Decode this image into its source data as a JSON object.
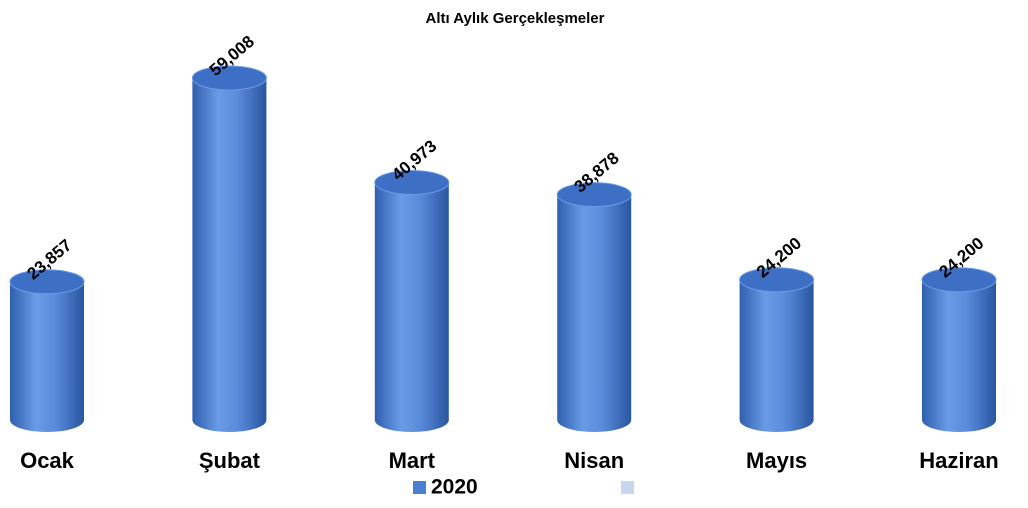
{
  "chart_data": {
    "type": "bar",
    "title": "Altı Aylık Gerçekleşmeler",
    "categories": [
      "Ocak",
      "Şubat",
      "Mart",
      "Nisan",
      "Mayıs",
      "Haziran"
    ],
    "series": [
      {
        "name": "2020",
        "color": "#4a7fd4",
        "values": [
          23857,
          59008,
          40973,
          38878,
          24200,
          24200
        ],
        "value_labels": [
          "23,857",
          "59,008",
          "40,973",
          "38,878",
          "24,200",
          "24,200"
        ]
      }
    ]
  }
}
